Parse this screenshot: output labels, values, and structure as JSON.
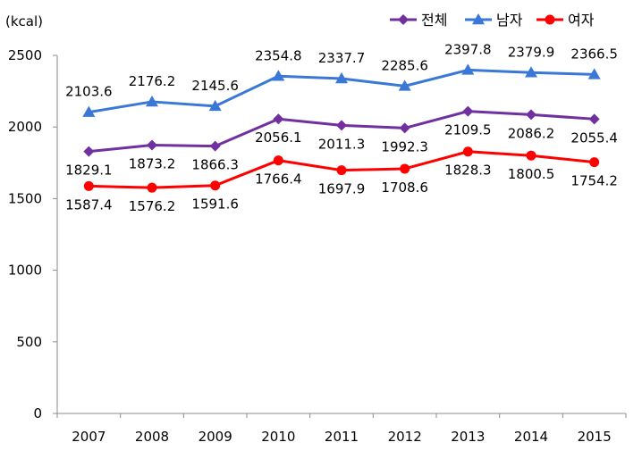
{
  "chart_data": {
    "type": "line",
    "title": "",
    "ylabel": "(kcal)",
    "xlabel": "",
    "ylim": [
      0,
      2500
    ],
    "yticks": [
      0,
      500,
      1000,
      1500,
      2000,
      2500
    ],
    "grid": false,
    "legend_position": "top-right",
    "categories": [
      "2007",
      "2008",
      "2009",
      "2010",
      "2011",
      "2012",
      "2013",
      "2014",
      "2015"
    ],
    "series": [
      {
        "name": "전체",
        "color": "#7030A0",
        "marker": "diamond",
        "label_position": "below",
        "values": [
          1829.1,
          1873.2,
          1866.3,
          2056.1,
          2011.3,
          1992.3,
          2109.5,
          2086.2,
          2055.4
        ],
        "labels": [
          "1829.1",
          "1873.2",
          "1866.3",
          "2056.1",
          "2011.3",
          "1992.3",
          "2109.5",
          "2086.2",
          "2055.4"
        ]
      },
      {
        "name": "남자",
        "color": "#3A78D8",
        "marker": "triangle",
        "label_position": "above",
        "values": [
          2103.6,
          2176.2,
          2145.6,
          2354.8,
          2337.7,
          2285.6,
          2397.8,
          2379.9,
          2366.5
        ],
        "labels": [
          "2103.6",
          "2176.2",
          "2145.6",
          "2354.8",
          "2337.7",
          "2285.6",
          "2397.8",
          "2379.9",
          "2366.5"
        ]
      },
      {
        "name": "여자",
        "color": "#FF0000",
        "marker": "circle",
        "label_position": "below",
        "values": [
          1587.4,
          1576.2,
          1591.6,
          1766.4,
          1697.9,
          1708.6,
          1828.3,
          1800.5,
          1754.2
        ],
        "labels": [
          "1587.4",
          "1576.2",
          "1591.6",
          "1766.4",
          "1697.9",
          "1708.6",
          "1828.3",
          "1800.5",
          "1754.2"
        ]
      }
    ]
  }
}
